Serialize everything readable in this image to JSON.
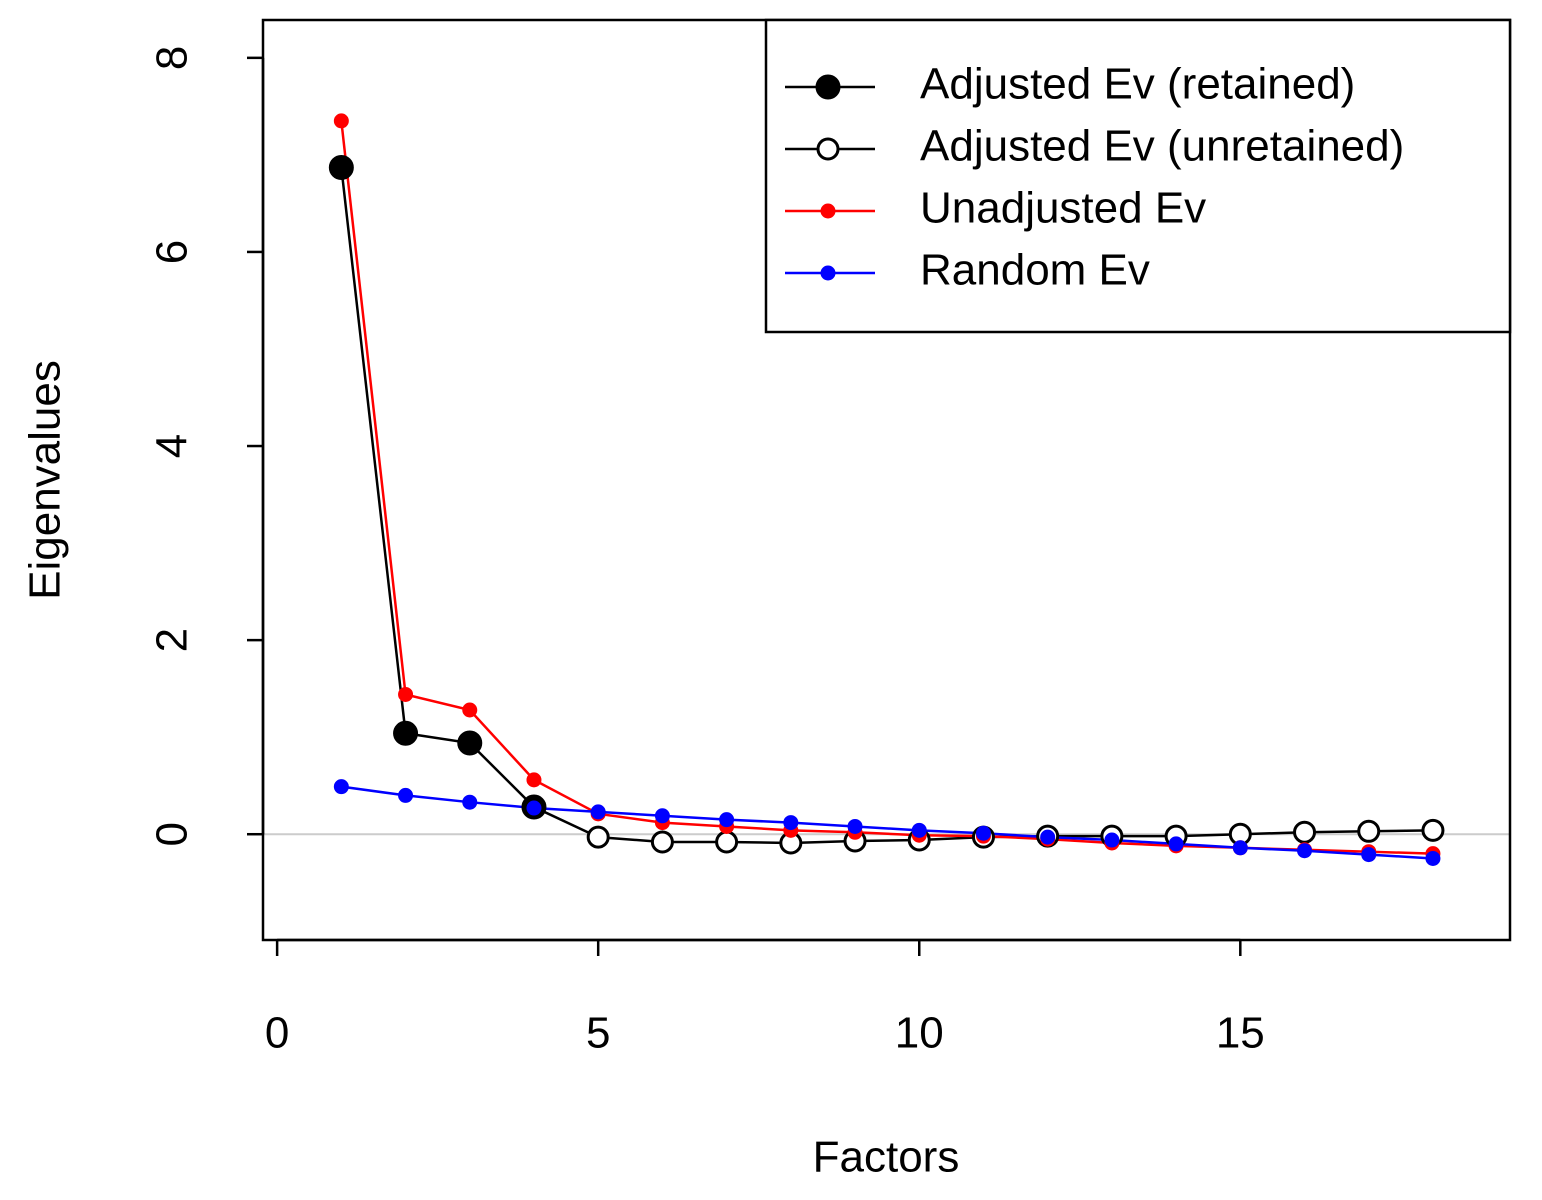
{
  "chart_data": {
    "type": "line",
    "xlabel": "Factors",
    "ylabel": "Eigenvalues",
    "x": [
      1,
      2,
      3,
      4,
      5,
      6,
      7,
      8,
      9,
      10,
      11,
      12,
      13,
      14,
      15,
      16,
      17,
      18
    ],
    "series": [
      {
        "name": "Adjusted Ev (retained)",
        "color": "#000000",
        "fill": "#000000",
        "values": [
          6.87,
          1.04,
          0.94,
          0.28,
          null,
          null,
          null,
          null,
          null,
          null,
          null,
          null,
          null,
          null,
          null,
          null,
          null,
          null
        ]
      },
      {
        "name": "Adjusted Ev (unretained)",
        "color": "#000000",
        "fill": "#ffffff",
        "values": [
          null,
          null,
          null,
          null,
          -0.03,
          -0.08,
          -0.08,
          -0.09,
          -0.07,
          -0.06,
          -0.03,
          -0.02,
          -0.02,
          -0.02,
          0.0,
          0.02,
          0.03,
          0.04
        ]
      },
      {
        "name": "Unadjusted Ev",
        "color": "#ff0000",
        "fill": "#ff0000",
        "values": [
          7.35,
          1.44,
          1.28,
          0.56,
          0.21,
          0.12,
          0.08,
          0.04,
          0.02,
          -0.01,
          -0.02,
          -0.05,
          -0.09,
          -0.12,
          -0.14,
          -0.16,
          -0.18,
          -0.2
        ]
      },
      {
        "name": "Random Ev",
        "color": "#0000ff",
        "fill": "#0000ff",
        "values": [
          0.49,
          0.4,
          0.33,
          0.27,
          0.23,
          0.19,
          0.15,
          0.12,
          0.08,
          0.04,
          0.01,
          -0.03,
          -0.06,
          -0.1,
          -0.14,
          -0.17,
          -0.21,
          -0.25
        ]
      }
    ],
    "xlim": [
      -0.22,
      19.2
    ],
    "xticks": [
      0,
      5,
      10,
      15
    ],
    "ylim": [
      -1.09,
      8.39
    ],
    "yticks": [
      0,
      2,
      4,
      6,
      8
    ],
    "hline": 0,
    "legend": "top-right"
  }
}
